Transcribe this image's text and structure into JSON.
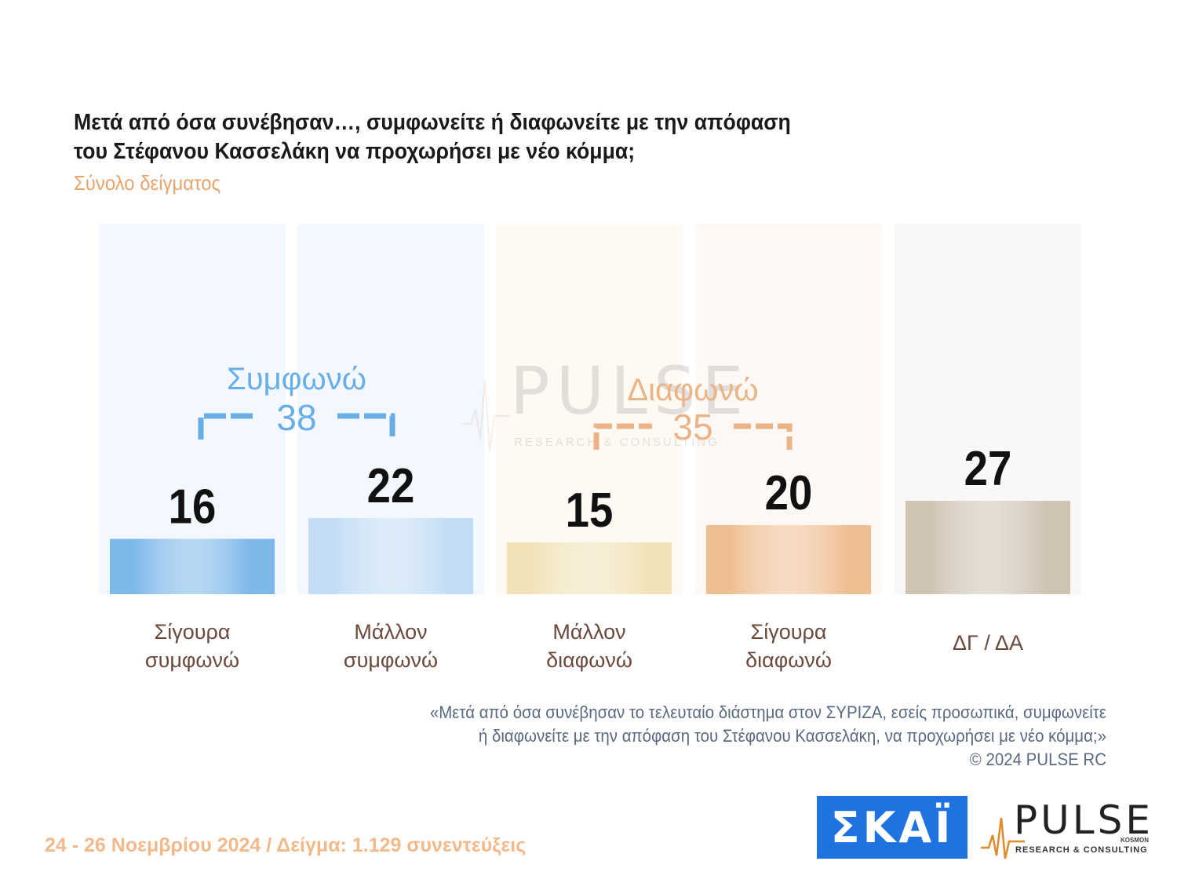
{
  "title_line1": "Μετά από όσα συνέβησαν…, συμφωνείτε ή διαφωνείτε με την απόφαση",
  "title_line2": "του Στέφανου Κασσελάκη να προχωρήσει με νέο κόμμα;",
  "subtitle": "Σύνολο δείγματος",
  "chart_data": {
    "type": "bar",
    "categories": [
      [
        "Σίγουρα",
        "συμφωνώ"
      ],
      [
        "Μάλλον",
        "συμφωνώ"
      ],
      [
        "Μάλλον",
        "διαφωνώ"
      ],
      [
        "Σίγουρα",
        "διαφωνώ"
      ],
      [
        "ΔΓ / ΔΑ"
      ]
    ],
    "values": [
      16,
      22,
      15,
      20,
      27
    ],
    "ylim": [
      0,
      100
    ],
    "colors": [
      "#7db8ea",
      "#c2dcf5",
      "#f1e2b8",
      "#efbf94",
      "#cfc3b3"
    ],
    "groups": [
      {
        "label": "Συμφωνώ",
        "total": "38",
        "color": "#6aaee6"
      },
      {
        "label": "Διαφωνώ",
        "total": "35",
        "color": "#eab487"
      }
    ]
  },
  "watermark": {
    "word": "PULSE",
    "tagline": "RESEARCH & CONSULTING"
  },
  "footnote_line1": "«Μετά από όσα συνέβησαν το τελευταίο διάστημα στον ΣΥΡΙΖΑ, εσείς προσωπικά, συμφωνείτε",
  "footnote_line2": "ή διαφωνείτε με την απόφαση του Στέφανου Κασσελάκη, να προχωρήσει με νέο κόμμα;»",
  "footnote_line3": "©  2024  PULSE RC",
  "footer_info": "24 - 26 Νοεμβρίου 2024  /  Δείγμα:  1.129 συνεντεύξεις",
  "logos": {
    "skai": "ΣΚΑΪ",
    "pulse": "PULSE",
    "pulse_sub": "RESEARCH & CONSULTING",
    "kosmon": "KOSMON"
  }
}
